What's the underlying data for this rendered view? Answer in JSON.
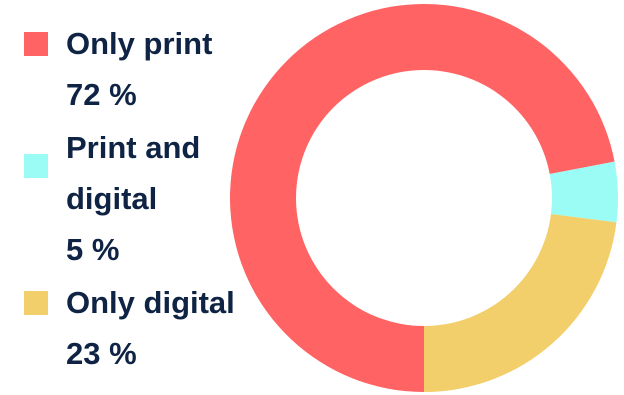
{
  "chart_data": {
    "type": "pie",
    "donut": true,
    "legend_position": "left",
    "categories": [
      "Only print",
      "Print and digital",
      "Only digital"
    ],
    "values": [
      72,
      5,
      23
    ],
    "unit": "%",
    "colors": [
      "#ff6363",
      "#9bfcf6",
      "#f2cf6b"
    ]
  },
  "legend": {
    "items": [
      {
        "label": "Only print",
        "value": "72 %",
        "color": "#ff6363"
      },
      {
        "label": "Print and digital",
        "value": "5 %",
        "color": "#9bfcf6"
      },
      {
        "label": "Only digital",
        "value": "23 %",
        "color": "#f2cf6b"
      }
    ]
  }
}
